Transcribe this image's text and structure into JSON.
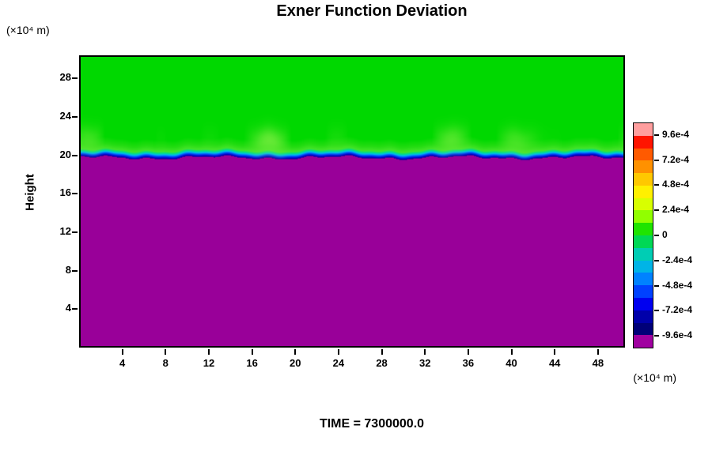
{
  "title": "Exner Function Deviation",
  "axes": {
    "y_label": "Height",
    "y_unit": "(×10⁴ m)",
    "x_unit": "(×10⁴ m)",
    "x_ticks": [
      4,
      8,
      12,
      16,
      20,
      24,
      28,
      32,
      36,
      40,
      44,
      48
    ],
    "y_ticks": [
      4,
      8,
      12,
      16,
      20,
      24,
      28
    ],
    "x_range": [
      0,
      50.5
    ],
    "y_range": [
      0,
      30.4
    ]
  },
  "time_label": "TIME = 7300000.0",
  "colorbar": {
    "labels": [
      "9.6e-4",
      "7.2e-4",
      "4.8e-4",
      "2.4e-4",
      "0",
      "-2.4e-4",
      "-4.8e-4",
      "-7.2e-4",
      "-9.6e-4"
    ],
    "colors": [
      "#ff9e9e",
      "#ff1400",
      "#ff5a00",
      "#ff9100",
      "#ffc800",
      "#fff000",
      "#d8ff00",
      "#91ff00",
      "#1fe400",
      "#00d855",
      "#00cdb4",
      "#00b4e6",
      "#0082ff",
      "#0041ff",
      "#0000f0",
      "#0000aa",
      "#000078",
      "#a000a0"
    ]
  },
  "chart_data": {
    "type": "heatmap",
    "title": "Exner Function Deviation",
    "xlabel": "x (×10⁴ m)",
    "ylabel": "Height (×10⁴ m)",
    "x_range": [
      0,
      50.5
    ],
    "y_range": [
      0,
      30.4
    ],
    "x_ticks": [
      4,
      8,
      12,
      16,
      20,
      24,
      28,
      32,
      36,
      40,
      44,
      48
    ],
    "y_ticks": [
      4,
      8,
      12,
      16,
      20,
      24,
      28
    ],
    "time": 7300000.0,
    "colorbar_tick_values": [
      0.00096,
      0.00072,
      0.00048,
      0.00024,
      0,
      -0.00024,
      -0.00048,
      -0.00072,
      -0.00096
    ],
    "field": {
      "description": "Exner function deviation is approximately 0 (green) above an interface at height ~20x10^4 m; strongly negative, below -9.6e-4 (purple), beneath the interface; a thin negative transition band (blue/cyan) lies along the interface; faint lighter-green wisps appear between heights ~20.5 and ~23x10^4 m.",
      "interface_height": 19.8,
      "value_above_interface": 0,
      "value_below_interface": -0.001
    },
    "render": {
      "above_color": "#00d800",
      "below_color": "#990099",
      "wisp_color": "#8cf04a",
      "interface_height": 19.8,
      "interface_wiggle": [
        [
          0.55,
          0.14,
          1.0
        ],
        [
          1.7,
          0.09,
          3.2
        ],
        [
          3.3,
          0.05,
          0.6
        ]
      ],
      "color_stops": [
        [
          0,
          "#2a0090"
        ],
        [
          0.12,
          "#0000cc"
        ],
        [
          0.3,
          "#0055ff"
        ],
        [
          0.45,
          "#00bbee"
        ],
        [
          0.6,
          "#00dd88"
        ],
        [
          0.8,
          "#44e427"
        ],
        [
          1.3,
          "#22dc11"
        ],
        [
          2.0,
          "#00d800"
        ]
      ],
      "wisp": {
        "center": 1.9,
        "width": 1.3,
        "strength": 0.5
      }
    }
  }
}
